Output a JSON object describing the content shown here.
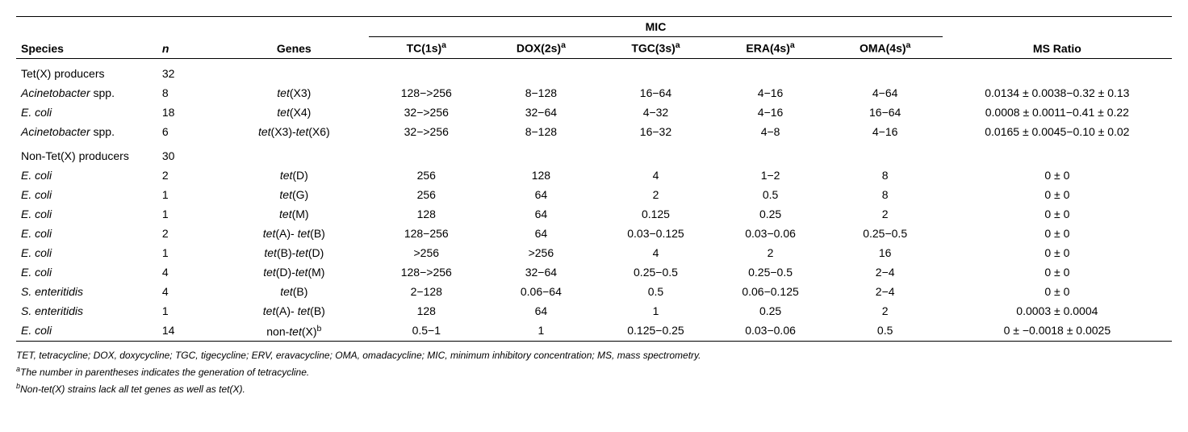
{
  "headers": {
    "species": "Species",
    "n": "n",
    "genes": "Genes",
    "mic_group": "MIC",
    "tc": "TC(1s)",
    "dox": "DOX(2s)",
    "tgc": "TGC(3s)",
    "era": "ERA(4s)",
    "oma": "OMA(4s)",
    "sup_a": "a",
    "ms_ratio": "MS Ratio"
  },
  "groups": [
    {
      "label": "Tet(X) producers",
      "n": "32",
      "rows": [
        {
          "species_pre": "Acinetobacter",
          "species_post": " spp.",
          "n": "8",
          "gene_pre": "tet",
          "gene_post": "(X3)",
          "tc": "128−>256",
          "dox": "8−128",
          "tgc": "16−64",
          "era": "4−16",
          "oma": "4−64",
          "ms": "0.0134 ± 0.0038−0.32 ± 0.13"
        },
        {
          "species_pre": "E. coli",
          "species_post": "",
          "n": "18",
          "gene_pre": "tet",
          "gene_post": "(X4)",
          "tc": "32−>256",
          "dox": "32−64",
          "tgc": "4−32",
          "era": "4−16",
          "oma": "16−64",
          "ms": "0.0008 ± 0.0011−0.41 ± 0.22"
        },
        {
          "species_pre": "Acinetobacter",
          "species_post": " spp.",
          "n": "6",
          "gene_pre": "tet",
          "gene_mid": "(X3)-",
          "gene_pre2": "tet",
          "gene_post": "(X6)",
          "tc": "32−>256",
          "dox": "8−128",
          "tgc": "16−32",
          "era": "4−8",
          "oma": "4−16",
          "ms": "0.0165 ± 0.0045−0.10 ± 0.02"
        }
      ]
    },
    {
      "label": "Non-Tet(X) producers",
      "n": "30",
      "rows": [
        {
          "species_pre": "E. coli",
          "species_post": "",
          "n": "2",
          "gene_pre": "tet",
          "gene_post": "(D)",
          "tc": "256",
          "dox": "128",
          "tgc": "4",
          "era": "1−2",
          "oma": "8",
          "ms": "0 ± 0"
        },
        {
          "species_pre": "E. coli",
          "species_post": "",
          "n": "1",
          "gene_pre": "tet",
          "gene_post": "(G)",
          "tc": "256",
          "dox": "64",
          "tgc": "2",
          "era": "0.5",
          "oma": "8",
          "ms": "0 ± 0"
        },
        {
          "species_pre": "E. coli",
          "species_post": "",
          "n": "1",
          "gene_pre": "tet",
          "gene_post": "(M)",
          "tc": "128",
          "dox": "64",
          "tgc": "0.125",
          "era": "0.25",
          "oma": "2",
          "ms": "0 ± 0"
        },
        {
          "species_pre": "E. coli",
          "species_post": "",
          "n": "2",
          "gene_pre": "tet",
          "gene_mid": "(A)- ",
          "gene_pre2": "tet",
          "gene_post": "(B)",
          "tc": "128−256",
          "dox": "64",
          "tgc": "0.03−0.125",
          "era": "0.03−0.06",
          "oma": "0.25−0.5",
          "ms": "0 ± 0"
        },
        {
          "species_pre": "E. coli",
          "species_post": "",
          "n": "1",
          "gene_pre": "tet",
          "gene_mid": "(B)-",
          "gene_pre2": "tet",
          "gene_post": "(D)",
          "tc": ">256",
          "dox": ">256",
          "tgc": "4",
          "era": "2",
          "oma": "16",
          "ms": "0 ± 0"
        },
        {
          "species_pre": "E. coli",
          "species_post": "",
          "n": "4",
          "gene_pre": "tet",
          "gene_mid": "(D)-",
          "gene_pre2": "tet",
          "gene_post": "(M)",
          "tc": "128−>256",
          "dox": "32−64",
          "tgc": "0.25−0.5",
          "era": "0.25−0.5",
          "oma": "2−4",
          "ms": "0 ± 0"
        },
        {
          "species_pre": "S. enteritidis",
          "species_post": "",
          "n": "4",
          "gene_pre": "tet",
          "gene_post": "(B)",
          "tc": "2−128",
          "dox": "0.06−64",
          "tgc": "0.5",
          "era": "0.06−0.125",
          "oma": "2−4",
          "ms": "0 ± 0"
        },
        {
          "species_pre": "S. enteritidis",
          "species_post": "",
          "n": "1",
          "gene_pre": "tet",
          "gene_mid": "(A)- ",
          "gene_pre2": "tet",
          "gene_post": "(B)",
          "tc": "128",
          "dox": "64",
          "tgc": "1",
          "era": "0.25",
          "oma": "2",
          "ms": "0.0003 ± 0.0004"
        },
        {
          "species_pre": "E. coli",
          "species_post": "",
          "n": "14",
          "gene_pre": "non-",
          "gene_pre2": "tet",
          "gene_post": "(X)",
          "gene_sup": "b",
          "tc": "0.5−1",
          "dox": "1",
          "tgc": "0.125−0.25",
          "era": "0.03−0.06",
          "oma": "0.5",
          "ms": "0 ± −0.0018 ± 0.0025"
        }
      ]
    }
  ],
  "footnotes": {
    "defs": "TET, tetracycline; DOX, doxycycline; TGC, tigecycline; ERV, eravacycline; OMA, omadacycline; MIC, minimum inhibitory concentration; MS, mass spectrometry.",
    "a_pre": "a",
    "a_text": "The number in parentheses indicates the generation of tetracycline.",
    "b_pre": "b",
    "b_text": "Non-tet(X) strains lack all tet genes as well as tet(X)."
  }
}
